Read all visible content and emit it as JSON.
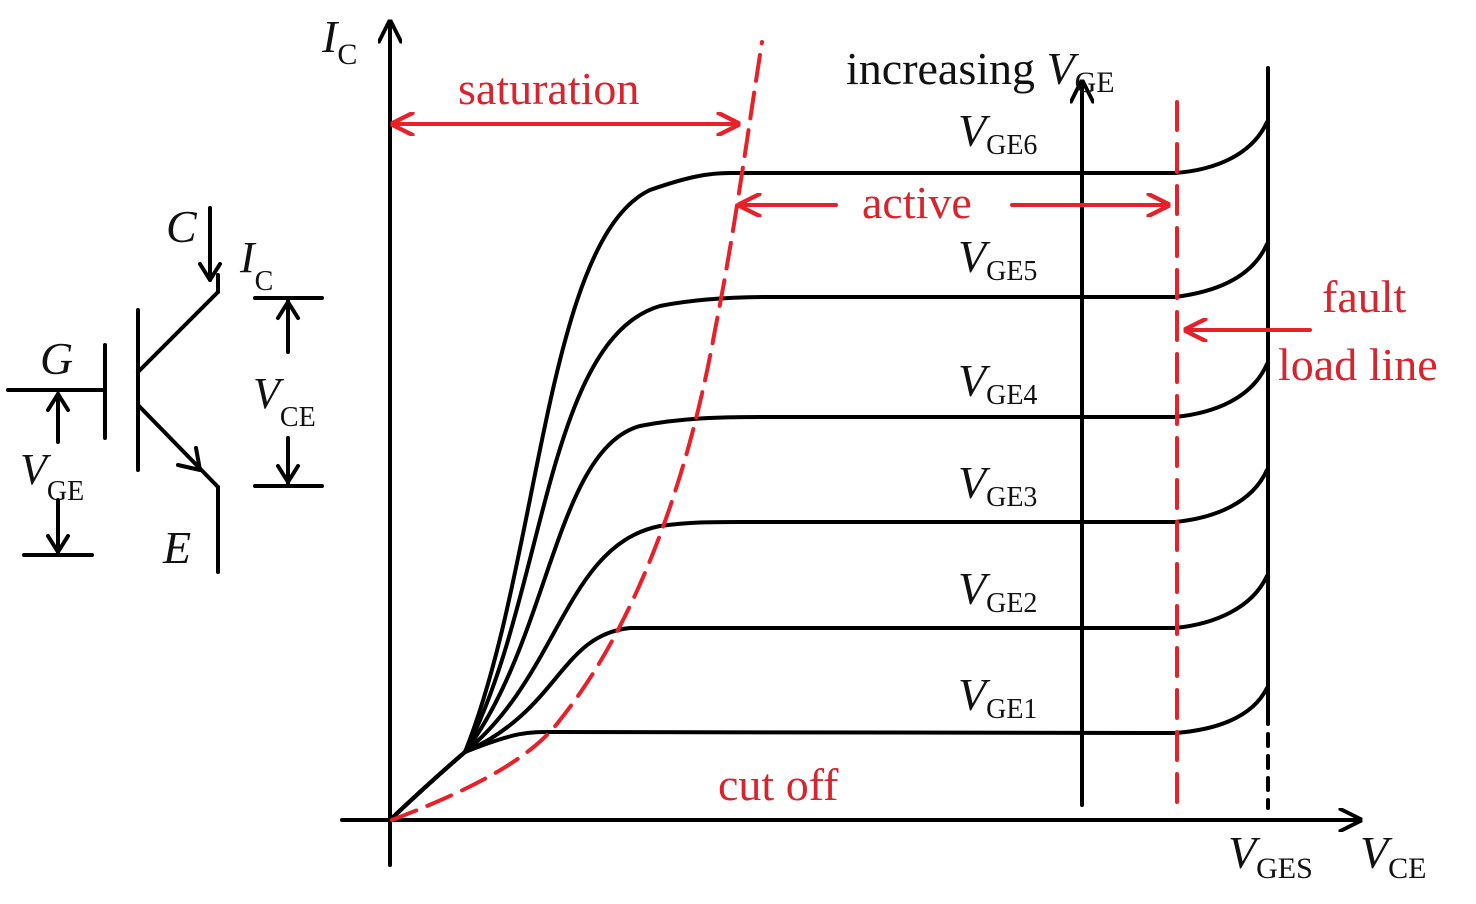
{
  "colors": {
    "ink": "#111111",
    "accent": "#d9242e"
  },
  "axes": {
    "y_label": {
      "main": "I",
      "sub": "C"
    },
    "x_label": {
      "main": "V",
      "sub": "CE"
    },
    "x_end_label": {
      "main": "V",
      "sub": "GES"
    }
  },
  "regions": {
    "saturation": "saturation",
    "active": "active",
    "cutoff": "cut off",
    "fault_line1": "fault",
    "fault_line2": "load line"
  },
  "increasing": {
    "prefix": "increasing ",
    "main": "V",
    "sub": "GE"
  },
  "curves": [
    {
      "main": "V",
      "sub": "GE6"
    },
    {
      "main": "V",
      "sub": "GE5"
    },
    {
      "main": "V",
      "sub": "GE4"
    },
    {
      "main": "V",
      "sub": "GE3"
    },
    {
      "main": "V",
      "sub": "GE2"
    },
    {
      "main": "V",
      "sub": "GE1"
    }
  ],
  "symbol": {
    "collector": "C",
    "gate": "G",
    "emitter": "E",
    "ic": {
      "main": "I",
      "sub": "C"
    },
    "vce": {
      "main": "V",
      "sub": "CE"
    },
    "vge": {
      "main": "V",
      "sub": "GE"
    }
  }
}
